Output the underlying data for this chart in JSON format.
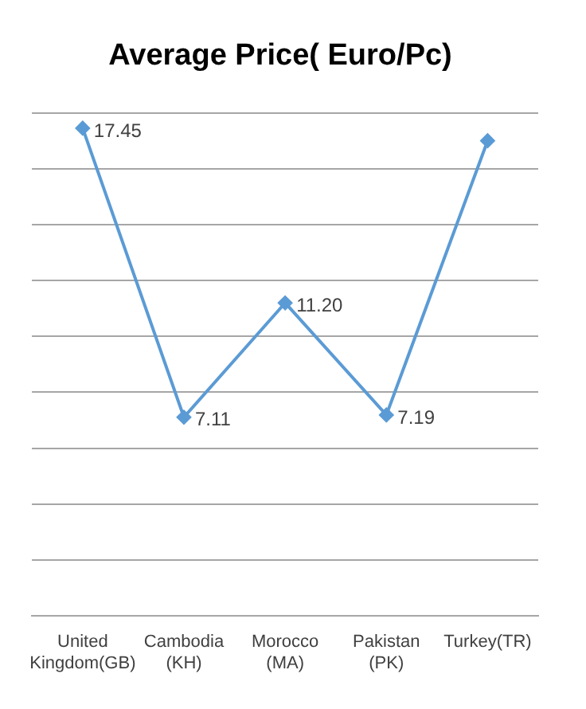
{
  "chart_data": {
    "type": "line",
    "title": "Average Price( Euro/Pc)",
    "categories": [
      "United Kingdom(GB)",
      "Cambodia(KH)",
      "Morocco(MA)",
      "Pakistan(PK)",
      "Turkey(TR)"
    ],
    "series": [
      {
        "color": "#5b9bd5",
        "values": [
          17.45,
          7.11,
          11.2,
          7.19,
          17.0
        ],
        "value_labels": [
          "17.45",
          "7.11",
          "11.20",
          "7.19",
          null
        ]
      }
    ],
    "ylim": [
      0,
      18
    ],
    "yticks": [
      {
        "value": 0,
        "label": null
      },
      {
        "value": 2,
        "label": null
      },
      {
        "value": 4,
        "label": null
      },
      {
        "value": 6,
        "label": null
      },
      {
        "value": 8,
        "label": null
      },
      {
        "value": 10,
        "label": null
      },
      {
        "value": 12,
        "label": null
      },
      {
        "value": 14,
        "label": null
      },
      {
        "value": 16,
        "label": null
      },
      {
        "value": 18,
        "label": null
      }
    ],
    "tick_labels": "x",
    "grid": "y",
    "marker": "diamond",
    "line_style": "solid",
    "legend": false
  }
}
